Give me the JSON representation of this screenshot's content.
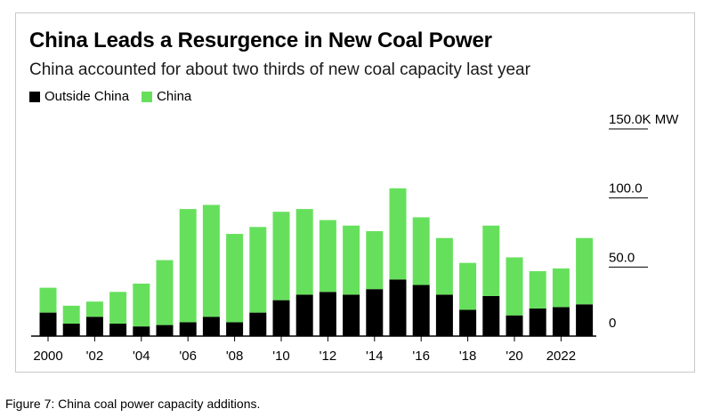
{
  "chart_data": {
    "type": "bar",
    "stacked": true,
    "title": "China Leads a Resurgence in New Coal Power",
    "subtitle": "China accounted for about two thirds of new coal capacity last year",
    "legend_position": "top-left",
    "x": [
      2000,
      2001,
      2002,
      2003,
      2004,
      2005,
      2006,
      2007,
      2008,
      2009,
      2010,
      2011,
      2012,
      2013,
      2014,
      2015,
      2016,
      2017,
      2018,
      2019,
      2020,
      2021,
      2022,
      2023
    ],
    "series": [
      {
        "name": "Outside China",
        "color": "#000000",
        "values": [
          17,
          9,
          14,
          9,
          7,
          8,
          10,
          14,
          10,
          17,
          26,
          30,
          32,
          30,
          34,
          41,
          37,
          30,
          19,
          29,
          15,
          20,
          21,
          23
        ]
      },
      {
        "name": "China",
        "color": "#66e05c",
        "values": [
          18,
          13,
          11,
          23,
          31,
          47,
          82,
          81,
          64,
          62,
          64,
          62,
          52,
          50,
          42,
          66,
          49,
          41,
          34,
          51,
          42,
          27,
          28,
          48
        ]
      }
    ],
    "y_ticks": [
      {
        "value": 0,
        "label": "0"
      },
      {
        "value": 50,
        "label": "50.0"
      },
      {
        "value": 100,
        "label": "100.0"
      },
      {
        "value": 150,
        "label": "150.0K MW"
      }
    ],
    "x_ticks": [
      {
        "value": 2000,
        "label": "2000"
      },
      {
        "value": 2002,
        "label": "'02"
      },
      {
        "value": 2004,
        "label": "'04"
      },
      {
        "value": 2006,
        "label": "'06"
      },
      {
        "value": 2008,
        "label": "'08"
      },
      {
        "value": 2010,
        "label": "'10"
      },
      {
        "value": 2012,
        "label": "'12"
      },
      {
        "value": 2014,
        "label": "'14"
      },
      {
        "value": 2016,
        "label": "'16"
      },
      {
        "value": 2018,
        "label": "'18"
      },
      {
        "value": 2020,
        "label": "'20"
      },
      {
        "value": 2022,
        "label": "2022"
      }
    ],
    "ylim": [
      0,
      150
    ],
    "grid": false
  },
  "caption": "Figure 7: China coal power capacity additions."
}
